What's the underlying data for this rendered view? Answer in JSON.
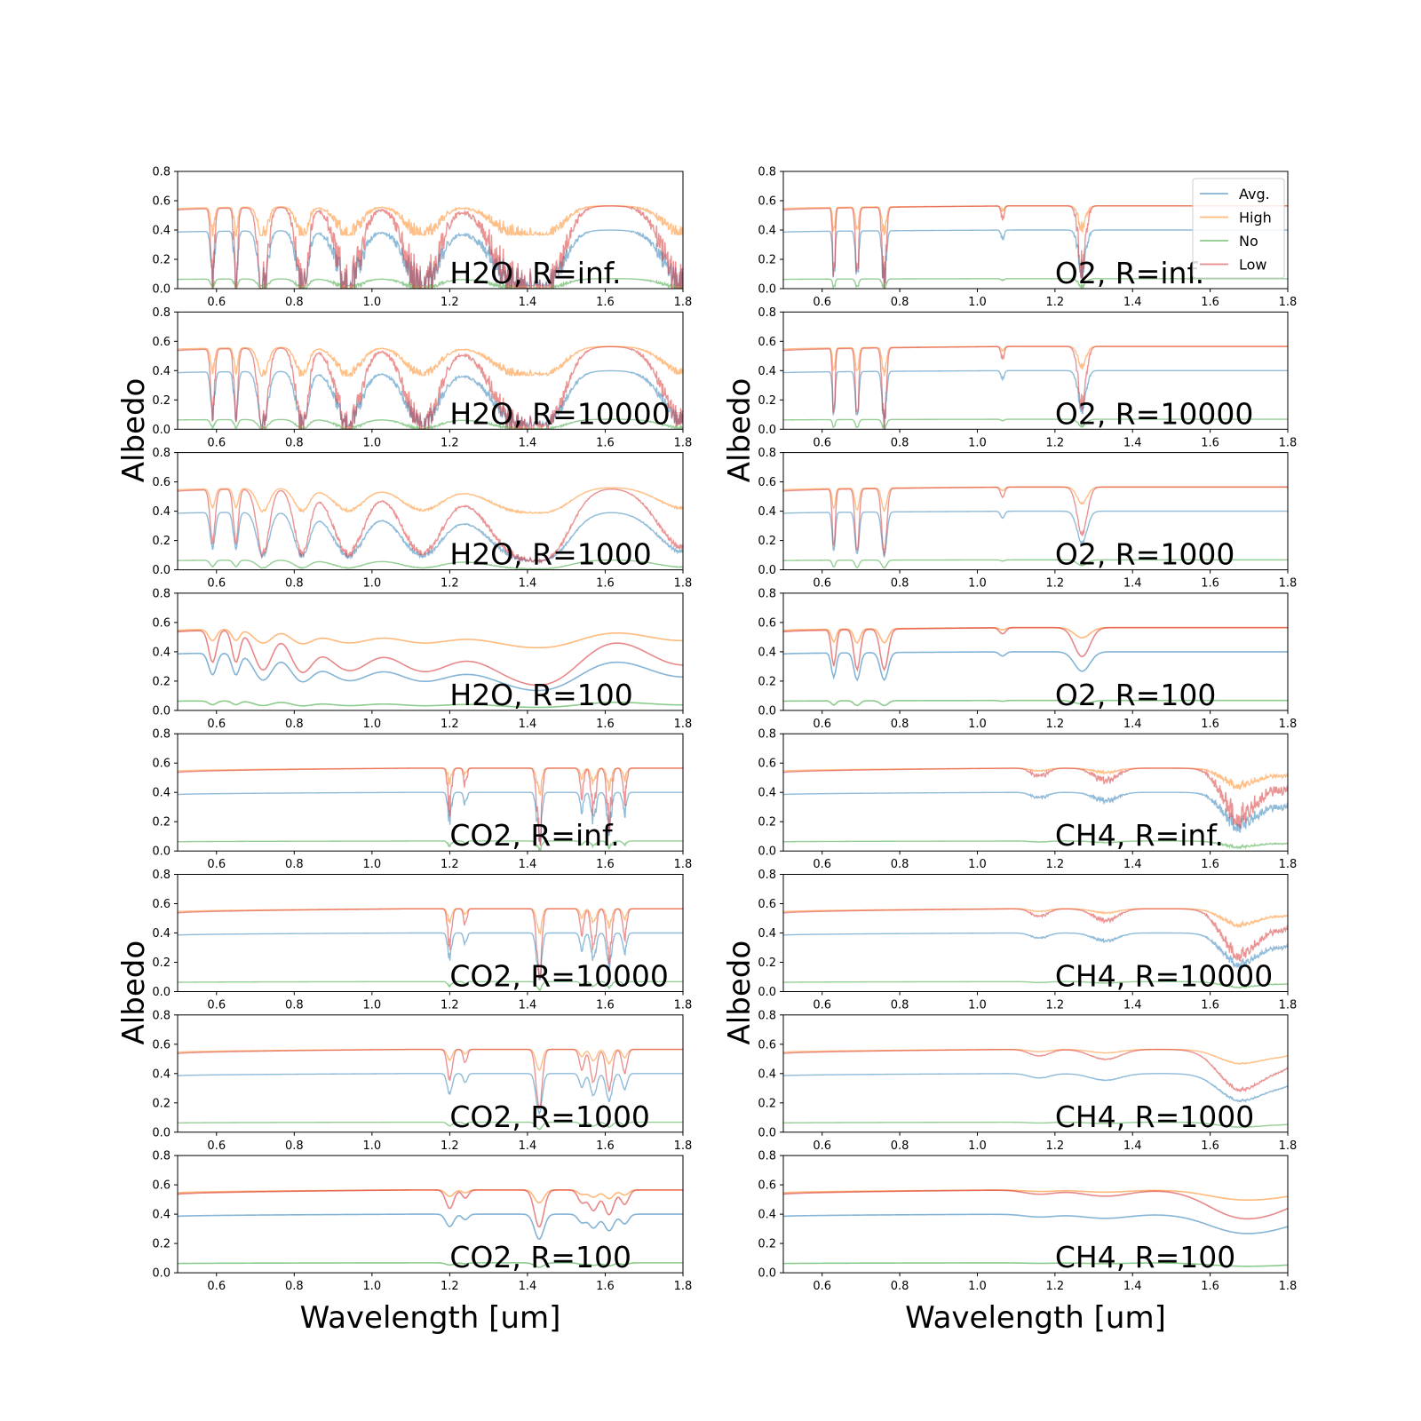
{
  "chart_data": {
    "type": "line",
    "xlabel": "Wavelength [um]",
    "ylabel": "Albedo",
    "xlim": [
      0.5,
      1.8
    ],
    "ylim": [
      0.0,
      0.8
    ],
    "xticks": [
      "0.6",
      "0.8",
      "1.0",
      "1.2",
      "1.4",
      "1.6",
      "1.8"
    ],
    "yticks": [
      "0.0",
      "0.2",
      "0.4",
      "0.6",
      "0.8"
    ],
    "legend": {
      "placement": "top-right of O2, R=inf. panel",
      "entries": [
        {
          "name": "Avg.",
          "color": "#1f77b4"
        },
        {
          "name": "High",
          "color": "#ff7f0e"
        },
        {
          "name": "No",
          "color": "#2ca02c"
        },
        {
          "name": "Low",
          "color": "#d62728"
        }
      ]
    },
    "series_baselines": {
      "High": {
        "start": 0.545,
        "end": 0.565
      },
      "Low": {
        "start": 0.535,
        "end": 0.565
      },
      "Avg.": {
        "start": 0.385,
        "end": 0.4
      },
      "No": {
        "start": 0.063,
        "end": 0.068
      }
    },
    "panels": [
      {
        "id": "h2o-inf",
        "label": "H2O, R=inf.",
        "molecule": "H2O",
        "resolution": "inf.",
        "column": "left",
        "row": 0
      },
      {
        "id": "h2o-1e4",
        "label": "H2O, R=10000",
        "molecule": "H2O",
        "resolution": "10000",
        "column": "left",
        "row": 1
      },
      {
        "id": "h2o-1e3",
        "label": "H2O, R=1000",
        "molecule": "H2O",
        "resolution": "1000",
        "column": "left",
        "row": 2
      },
      {
        "id": "h2o-1e2",
        "label": "H2O, R=100",
        "molecule": "H2O",
        "resolution": "100",
        "column": "left",
        "row": 3
      },
      {
        "id": "co2-inf",
        "label": "CO2, R=inf.",
        "molecule": "CO2",
        "resolution": "inf.",
        "column": "left",
        "row": 4
      },
      {
        "id": "co2-1e4",
        "label": "CO2, R=10000",
        "molecule": "CO2",
        "resolution": "10000",
        "column": "left",
        "row": 5
      },
      {
        "id": "co2-1e3",
        "label": "CO2, R=1000",
        "molecule": "CO2",
        "resolution": "1000",
        "column": "left",
        "row": 6
      },
      {
        "id": "co2-1e2",
        "label": "CO2, R=100",
        "molecule": "CO2",
        "resolution": "100",
        "column": "left",
        "row": 7
      },
      {
        "id": "o2-inf",
        "label": "O2, R=inf.",
        "molecule": "O2",
        "resolution": "inf.",
        "column": "right",
        "row": 0
      },
      {
        "id": "o2-1e4",
        "label": "O2, R=10000",
        "molecule": "O2",
        "resolution": "10000",
        "column": "right",
        "row": 1
      },
      {
        "id": "o2-1e3",
        "label": "O2, R=1000",
        "molecule": "O2",
        "resolution": "1000",
        "column": "right",
        "row": 2
      },
      {
        "id": "o2-1e2",
        "label": "O2, R=100",
        "molecule": "O2",
        "resolution": "100",
        "column": "right",
        "row": 3
      },
      {
        "id": "ch4-inf",
        "label": "CH4, R=inf.",
        "molecule": "CH4",
        "resolution": "inf.",
        "column": "right",
        "row": 4
      },
      {
        "id": "ch4-1e4",
        "label": "CH4, R=10000",
        "molecule": "CH4",
        "resolution": "10000",
        "column": "right",
        "row": 5
      },
      {
        "id": "ch4-1e3",
        "label": "CH4, R=1000",
        "molecule": "CH4",
        "resolution": "1000",
        "column": "right",
        "row": 6
      },
      {
        "id": "ch4-1e2",
        "label": "CH4, R=100",
        "molecule": "CH4",
        "resolution": "100",
        "column": "right",
        "row": 7
      }
    ],
    "absorption_bands": {
      "H2O": [
        [
          0.59,
          0.8,
          0.005
        ],
        [
          0.65,
          0.8,
          0.005
        ],
        [
          0.72,
          1.0,
          0.012
        ],
        [
          0.82,
          1.0,
          0.015
        ],
        [
          0.94,
          1.0,
          0.03
        ],
        [
          1.13,
          1.0,
          0.04
        ],
        [
          1.38,
          1.0,
          0.06
        ],
        [
          1.45,
          0.9,
          0.04
        ],
        [
          1.8,
          0.9,
          0.05
        ]
      ],
      "O2": [
        [
          0.63,
          0.9,
          0.003
        ],
        [
          0.69,
          1.0,
          0.004
        ],
        [
          0.76,
          1.0,
          0.005
        ],
        [
          1.065,
          0.15,
          0.004
        ],
        [
          1.27,
          0.7,
          0.01
        ]
      ],
      "CO2": [
        [
          1.2,
          0.45,
          0.005
        ],
        [
          1.24,
          0.2,
          0.004
        ],
        [
          1.43,
          0.9,
          0.006
        ],
        [
          1.54,
          0.3,
          0.005
        ],
        [
          1.57,
          0.5,
          0.006
        ],
        [
          1.61,
          0.6,
          0.006
        ],
        [
          1.65,
          0.35,
          0.005
        ]
      ],
      "CH4": [
        [
          1.16,
          0.1,
          0.02
        ],
        [
          1.33,
          0.15,
          0.03
        ],
        [
          1.67,
          0.5,
          0.04
        ],
        [
          1.72,
          0.25,
          0.04
        ],
        [
          1.79,
          0.2,
          0.03
        ]
      ]
    }
  }
}
